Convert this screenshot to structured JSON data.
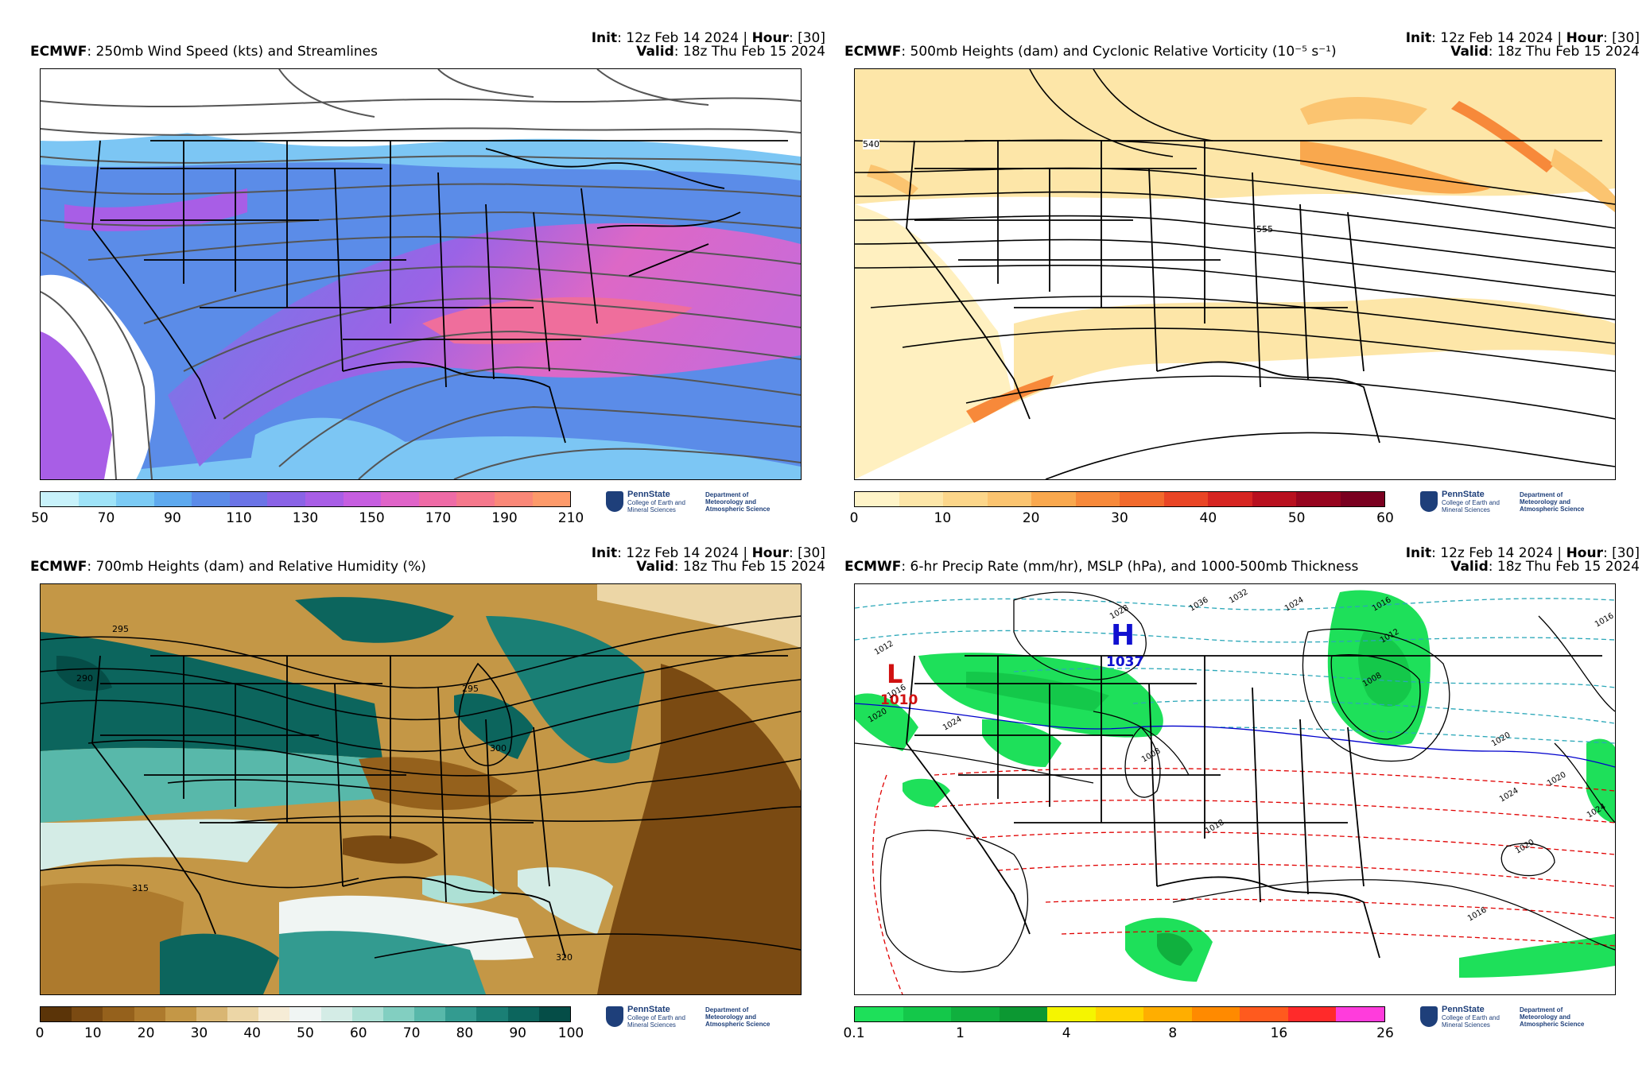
{
  "logo": {
    "name": "PennState",
    "college": "College of Earth and Mineral Sciences",
    "department": "Department of Meteorology and Atmospheric Science"
  },
  "panels": [
    {
      "model": "ECMWF",
      "title": ": 250mb Wind Speed (kts) and Streamlines",
      "init_label": "Init",
      "init": ": 12z Feb 14 2024 | ",
      "hour_label": "Hour",
      "hour": ": [30]",
      "valid_label": "Valid",
      "valid": ": 18z Thu Feb 15 2024",
      "colorbar_ticks": [
        "50",
        "70",
        "90",
        "110",
        "130",
        "150",
        "170",
        "190",
        "210"
      ],
      "colorbar_colors": [
        "#c8f2fb",
        "#9fe3f8",
        "#7ccbf5",
        "#5ea9ee",
        "#5b8be8",
        "#6b74e6",
        "#8a63e6",
        "#a85ee6",
        "#c65ee0",
        "#df64c8",
        "#ee6ba6",
        "#f5788c",
        "#fa8878",
        "#fd9a6a"
      ]
    },
    {
      "model": "ECMWF",
      "title": ": 500mb Heights (dam) and Cyclonic Relative Vorticity (10⁻⁵ s⁻¹)",
      "init_label": "Init",
      "init": ": 12z Feb 14 2024 | ",
      "hour_label": "Hour",
      "hour": ": [30]",
      "valid_label": "Valid",
      "valid": ": 18z Thu Feb 15 2024",
      "colorbar_ticks": [
        "0",
        "10",
        "20",
        "30",
        "40",
        "50",
        "60"
      ],
      "colorbar_colors": [
        "#fff4c8",
        "#fde6a8",
        "#fcd68a",
        "#fbc470",
        "#f9a84e",
        "#f7893a",
        "#f26a2c",
        "#e94525",
        "#d62521",
        "#b8101f",
        "#96051f",
        "#7a0020"
      ],
      "contour_labels": [
        "540",
        "555"
      ]
    },
    {
      "model": "ECMWF",
      "title": ": 700mb Heights (dam) and Relative Humidity (%)",
      "init_label": "Init",
      "init": ": 12z Feb 14 2024 | ",
      "hour_label": "Hour",
      "hour": ": [30]",
      "valid_label": "Valid",
      "valid": ": 18z Thu Feb 15 2024",
      "colorbar_ticks": [
        "0",
        "10",
        "20",
        "30",
        "40",
        "50",
        "60",
        "70",
        "80",
        "90",
        "100"
      ],
      "colorbar_colors": [
        "#5b3408",
        "#7a4a12",
        "#95611c",
        "#ad7a2d",
        "#c49746",
        "#d9b673",
        "#ecd6a6",
        "#f6ecd6",
        "#f0f5f3",
        "#d4ece6",
        "#ade0d5",
        "#82cfc1",
        "#58b8aa",
        "#339b90",
        "#1a7f75",
        "#0c655d",
        "#054d47"
      ],
      "contour_labels": [
        "295",
        "290",
        "295",
        "300",
        "315",
        "320"
      ]
    },
    {
      "model": "ECMWF",
      "title": ": 6-hr Precip Rate (mm/hr), MSLP (hPa), and 1000-500mb Thickness",
      "init_label": "Init",
      "init": ": 12z Feb 14 2024 | ",
      "hour_label": "Hour",
      "hour": ": [30]",
      "valid_label": "Valid",
      "valid": ": 18z Thu Feb 15 2024",
      "colorbar_ticks": [
        "0.1",
        "1",
        "4",
        "8",
        "16",
        "26"
      ],
      "colorbar_colors": [
        "#1ee05a",
        "#14c84a",
        "#10b03e",
        "#0c9832",
        "#f5f500",
        "#ffd400",
        "#ffae00",
        "#ff8a00",
        "#ff5a1e",
        "#ff2a2a",
        "#ff3cdc"
      ],
      "high": {
        "letter": "H",
        "value": "1037"
      },
      "low": {
        "letter": "L",
        "value": "1010"
      },
      "isobar_labels": [
        "1012",
        "1016",
        "1020",
        "1024",
        "1028",
        "1036",
        "1032",
        "1024",
        "1016",
        "1008",
        "1012",
        "1016",
        "1020",
        "1024",
        "1020",
        "1024",
        "1020",
        "1016",
        "1018",
        "1008"
      ]
    }
  ]
}
